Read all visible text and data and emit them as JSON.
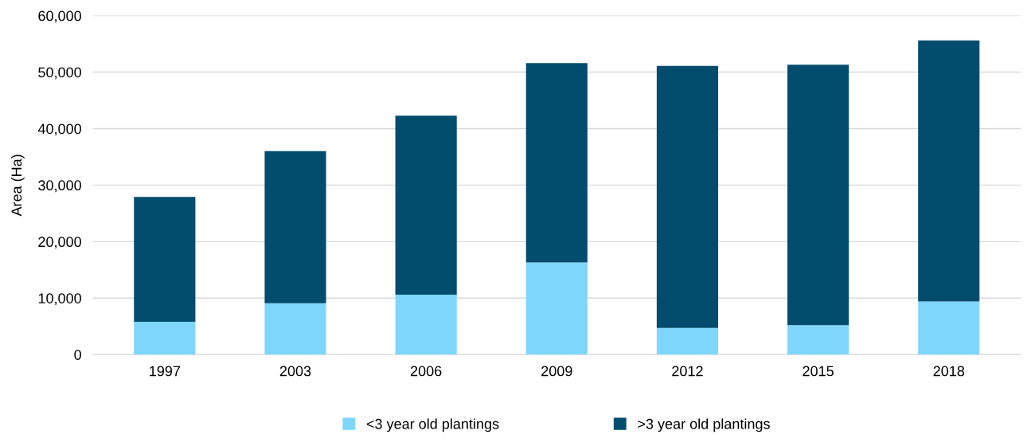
{
  "chart_data": {
    "type": "bar",
    "stacked": true,
    "ylabel": "Area (Ha)",
    "categories": [
      "1997",
      "2003",
      "2006",
      "2009",
      "2012",
      "2015",
      "2018"
    ],
    "series": [
      {
        "name": "<3 year old plantings",
        "color": "#7fd6fd",
        "values": [
          5800,
          9100,
          10600,
          16300,
          4700,
          5200,
          9400
        ]
      },
      {
        "name": ">3 year old plantings",
        "color": "#024c6e",
        "values": [
          22100,
          26900,
          31700,
          35300,
          46400,
          46100,
          46200
        ]
      }
    ],
    "ylim": [
      0,
      60000
    ],
    "yticks": [
      {
        "value": 0,
        "label": "0"
      },
      {
        "value": 10000,
        "label": "10,000"
      },
      {
        "value": 20000,
        "label": "20,000"
      },
      {
        "value": 30000,
        "label": "30,000"
      },
      {
        "value": 40000,
        "label": "40,000"
      },
      {
        "value": 50000,
        "label": "50,000"
      },
      {
        "value": 60000,
        "label": "60,000"
      }
    ],
    "grid": "y",
    "legend": "bottom"
  }
}
